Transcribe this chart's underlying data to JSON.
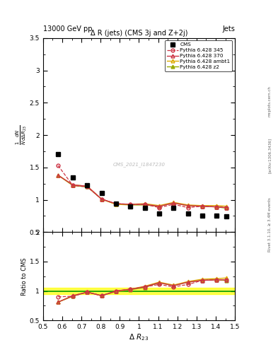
{
  "title_top": "13000 GeV pp",
  "title_right": "Jets",
  "plot_title": "Δ R (jets) (CMS 3j and Z+2j)",
  "ylabel_main": "$\\frac{1}{N}\\frac{dN}{d\\Delta R_{23}}$",
  "ylabel_ratio": "Ratio to CMS",
  "xlabel": "$\\Delta\\ R_{23}$",
  "watermark": "CMS_2021_I1847230",
  "right_label": "Rivet 3.1.10, ≥ 3.4M events",
  "arxiv_label": "[arXiv:1306.3436]",
  "mcplots_label": "mcplots.cern.ch",
  "cms_x": [
    0.578,
    0.655,
    0.73,
    0.805,
    0.88,
    0.955,
    1.03,
    1.105,
    1.18,
    1.255,
    1.33,
    1.405,
    1.455
  ],
  "cms_y": [
    1.7,
    1.34,
    1.23,
    1.1,
    0.94,
    0.9,
    0.87,
    0.79,
    0.87,
    0.79,
    0.76,
    0.75,
    0.74
  ],
  "p345_x": [
    0.578,
    0.655,
    0.73,
    0.805,
    0.88,
    0.955,
    1.03,
    1.105,
    1.18,
    1.255,
    1.33,
    1.405,
    1.455
  ],
  "p345_y": [
    1.53,
    1.22,
    1.2,
    1.01,
    0.94,
    0.93,
    0.93,
    0.88,
    0.93,
    0.88,
    0.9,
    0.89,
    0.88
  ],
  "p370_x": [
    0.578,
    0.655,
    0.73,
    0.805,
    0.88,
    0.955,
    1.03,
    1.105,
    1.18,
    1.255,
    1.33,
    1.405,
    1.455
  ],
  "p370_y": [
    1.38,
    1.23,
    1.21,
    1.01,
    0.94,
    0.93,
    0.93,
    0.9,
    0.95,
    0.91,
    0.9,
    0.89,
    0.88
  ],
  "pambt_x": [
    0.578,
    0.655,
    0.73,
    0.805,
    0.88,
    0.955,
    1.03,
    1.105,
    1.18,
    1.255,
    1.33,
    1.405,
    1.455
  ],
  "pambt_y": [
    1.38,
    1.23,
    1.21,
    1.01,
    0.93,
    0.93,
    0.94,
    0.91,
    0.96,
    0.92,
    0.91,
    0.91,
    0.9
  ],
  "pz2_x": [
    0.578,
    0.655,
    0.73,
    0.805,
    0.88,
    0.955,
    1.03,
    1.105,
    1.18,
    1.255,
    1.33,
    1.405,
    1.455
  ],
  "pz2_y": [
    1.38,
    1.22,
    1.2,
    1.01,
    0.93,
    0.92,
    0.92,
    0.9,
    0.95,
    0.91,
    0.9,
    0.89,
    0.87
  ],
  "ratio_p345_y": [
    0.9,
    0.91,
    0.98,
    0.92,
    1.0,
    1.03,
    1.07,
    1.11,
    1.07,
    1.11,
    1.18,
    1.19,
    1.19
  ],
  "ratio_p370_y": [
    0.81,
    0.92,
    0.98,
    0.92,
    1.0,
    1.03,
    1.07,
    1.14,
    1.09,
    1.15,
    1.18,
    1.19,
    1.19
  ],
  "ratio_pambt_y": [
    0.81,
    0.92,
    0.98,
    0.92,
    0.99,
    1.03,
    1.08,
    1.15,
    1.1,
    1.16,
    1.2,
    1.21,
    1.22
  ],
  "ratio_pz2_y": [
    0.81,
    0.91,
    0.98,
    0.92,
    0.99,
    1.02,
    1.06,
    1.14,
    1.09,
    1.15,
    1.18,
    1.19,
    1.18
  ],
  "color_345": "#cc3344",
  "color_370": "#cc3344",
  "color_ambt": "#ddaa00",
  "color_z2": "#99aa00",
  "color_cms": "black",
  "ylim_main": [
    0.5,
    3.5
  ],
  "ylim_ratio": [
    0.5,
    2.0
  ],
  "xlim": [
    0.5,
    1.5
  ],
  "yticks_main": [
    0.5,
    1.0,
    1.5,
    2.0,
    2.5,
    3.0,
    3.5
  ],
  "yticks_ratio": [
    0.5,
    1.0,
    1.5,
    2.0
  ],
  "xticks": [
    0.5,
    0.6,
    0.7,
    0.8,
    0.9,
    1.0,
    1.1,
    1.2,
    1.3,
    1.4,
    1.5
  ],
  "xticklabels": [
    "0.5",
    "0.6",
    "0.7",
    "0.8",
    "0.9",
    "1",
    "1.1",
    "1.2",
    "1.3",
    "1.4",
    "1.5"
  ]
}
